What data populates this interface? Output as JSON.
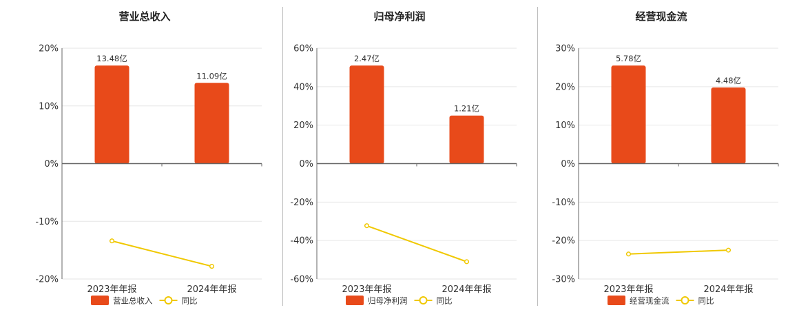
{
  "colors": {
    "bar": "#e84a1a",
    "line": "#f0c800",
    "grid": "#e6e6e6",
    "axis": "#666666",
    "divider": "#bdbdbd"
  },
  "chart_data": [
    {
      "type": "bar",
      "title": "营业总收入",
      "categories": [
        "2023年年报",
        "2024年年报"
      ],
      "ylim": [
        -20,
        20
      ],
      "yticks": [
        "20%",
        "10%",
        "0%",
        "-10%",
        "-20%"
      ],
      "series": [
        {
          "name": "营业总收入",
          "type": "bar",
          "values": [
            17.0,
            14.0
          ],
          "labels": [
            "13.48亿",
            "11.09亿"
          ]
        },
        {
          "name": "同比",
          "type": "line",
          "values": [
            -13.4,
            -17.8
          ]
        }
      ],
      "legend": "bottom-center",
      "grid": true
    },
    {
      "type": "bar",
      "title": "归母净利润",
      "categories": [
        "2023年年报",
        "2024年年报"
      ],
      "ylim": [
        -60,
        60
      ],
      "yticks": [
        "60%",
        "40%",
        "20%",
        "0%",
        "-20%",
        "-40%",
        "-60%"
      ],
      "series": [
        {
          "name": "归母净利润",
          "type": "bar",
          "values": [
            51.0,
            25.0
          ],
          "labels": [
            "2.47亿",
            "1.21亿"
          ]
        },
        {
          "name": "同比",
          "type": "line",
          "values": [
            -32.3,
            -51.0
          ]
        }
      ],
      "legend": "bottom-center",
      "grid": true
    },
    {
      "type": "bar",
      "title": "经营现金流",
      "categories": [
        "2023年年报",
        "2024年年报"
      ],
      "ylim": [
        -30,
        30
      ],
      "yticks": [
        "30%",
        "20%",
        "10%",
        "0%",
        "-10%",
        "-20%",
        "-30%"
      ],
      "series": [
        {
          "name": "经营现金流",
          "type": "bar",
          "values": [
            25.5,
            19.8
          ],
          "labels": [
            "5.78亿",
            "4.48亿"
          ]
        },
        {
          "name": "同比",
          "type": "line",
          "values": [
            -23.5,
            -22.5
          ]
        }
      ],
      "legend": "bottom-center",
      "grid": true
    }
  ]
}
